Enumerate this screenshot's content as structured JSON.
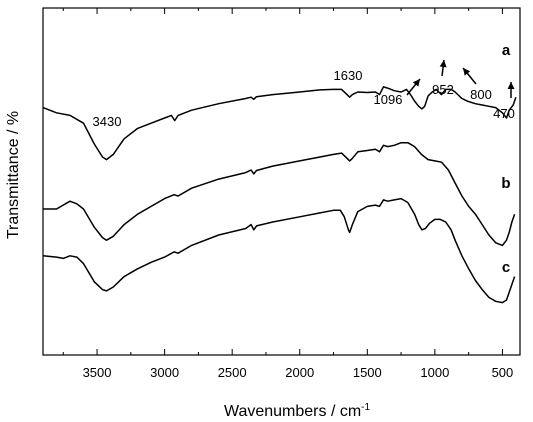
{
  "chart_data": {
    "type": "line",
    "xlabel": "Wavenumbers / cm",
    "xlabel_sup": "-1",
    "ylabel": "Transmittance / %",
    "xlim": [
      3900,
      370
    ],
    "x_reversed": true,
    "x_ticks": [
      3500,
      3000,
      2500,
      2000,
      1500,
      1000,
      500
    ],
    "x_tick_labels": [
      "3500",
      "3000",
      "2500",
      "2000",
      "1500",
      "1000",
      "500"
    ],
    "y_ticks_visible": false,
    "grid": false,
    "series": [
      {
        "name": "a",
        "points": [
          [
            3900,
            0.74
          ],
          [
            3800,
            0.72
          ],
          [
            3700,
            0.71
          ],
          [
            3600,
            0.68
          ],
          [
            3520,
            0.6
          ],
          [
            3460,
            0.55
          ],
          [
            3430,
            0.54
          ],
          [
            3380,
            0.56
          ],
          [
            3300,
            0.62
          ],
          [
            3200,
            0.66
          ],
          [
            3100,
            0.68
          ],
          [
            3000,
            0.7
          ],
          [
            2950,
            0.71
          ],
          [
            2925,
            0.69
          ],
          [
            2900,
            0.71
          ],
          [
            2800,
            0.73
          ],
          [
            2600,
            0.755
          ],
          [
            2400,
            0.775
          ],
          [
            2360,
            0.78
          ],
          [
            2340,
            0.772
          ],
          [
            2320,
            0.782
          ],
          [
            2200,
            0.79
          ],
          [
            2000,
            0.8
          ],
          [
            1850,
            0.808
          ],
          [
            1750,
            0.81
          ],
          [
            1690,
            0.81
          ],
          [
            1650,
            0.79
          ],
          [
            1630,
            0.78
          ],
          [
            1610,
            0.79
          ],
          [
            1570,
            0.8
          ],
          [
            1500,
            0.798
          ],
          [
            1440,
            0.8
          ],
          [
            1410,
            0.79
          ],
          [
            1380,
            0.82
          ],
          [
            1350,
            0.815
          ],
          [
            1300,
            0.805
          ],
          [
            1250,
            0.8
          ],
          [
            1210,
            0.81
          ],
          [
            1180,
            0.79
          ],
          [
            1150,
            0.765
          ],
          [
            1120,
            0.745
          ],
          [
            1096,
            0.735
          ],
          [
            1075,
            0.745
          ],
          [
            1050,
            0.785
          ],
          [
            1020,
            0.8
          ],
          [
            990,
            0.81
          ],
          [
            952,
            0.79
          ],
          [
            920,
            0.81
          ],
          [
            880,
            0.81
          ],
          [
            850,
            0.8
          ],
          [
            800,
            0.775
          ],
          [
            760,
            0.765
          ],
          [
            700,
            0.755
          ],
          [
            650,
            0.75
          ],
          [
            600,
            0.745
          ],
          [
            550,
            0.74
          ],
          [
            500,
            0.72
          ],
          [
            470,
            0.7
          ],
          [
            450,
            0.73
          ],
          [
            420,
            0.75
          ],
          [
            400,
            0.78
          ]
        ]
      },
      {
        "name": "b",
        "points": [
          [
            3900,
            0.35
          ],
          [
            3800,
            0.35
          ],
          [
            3700,
            0.38
          ],
          [
            3650,
            0.37
          ],
          [
            3600,
            0.35
          ],
          [
            3520,
            0.28
          ],
          [
            3460,
            0.24
          ],
          [
            3430,
            0.23
          ],
          [
            3380,
            0.245
          ],
          [
            3300,
            0.29
          ],
          [
            3200,
            0.33
          ],
          [
            3100,
            0.36
          ],
          [
            3000,
            0.39
          ],
          [
            2930,
            0.405
          ],
          [
            2900,
            0.4
          ],
          [
            2800,
            0.43
          ],
          [
            2600,
            0.465
          ],
          [
            2400,
            0.49
          ],
          [
            2360,
            0.5
          ],
          [
            2340,
            0.485
          ],
          [
            2320,
            0.498
          ],
          [
            2200,
            0.515
          ],
          [
            2000,
            0.535
          ],
          [
            1850,
            0.55
          ],
          [
            1750,
            0.56
          ],
          [
            1690,
            0.565
          ],
          [
            1650,
            0.545
          ],
          [
            1630,
            0.535
          ],
          [
            1610,
            0.545
          ],
          [
            1570,
            0.57
          ],
          [
            1500,
            0.575
          ],
          [
            1440,
            0.58
          ],
          [
            1410,
            0.57
          ],
          [
            1380,
            0.595
          ],
          [
            1350,
            0.59
          ],
          [
            1300,
            0.595
          ],
          [
            1250,
            0.605
          ],
          [
            1200,
            0.605
          ],
          [
            1150,
            0.59
          ],
          [
            1100,
            0.56
          ],
          [
            1050,
            0.54
          ],
          [
            1000,
            0.535
          ],
          [
            950,
            0.53
          ],
          [
            900,
            0.5
          ],
          [
            850,
            0.45
          ],
          [
            800,
            0.4
          ],
          [
            750,
            0.36
          ],
          [
            700,
            0.33
          ],
          [
            650,
            0.29
          ],
          [
            600,
            0.25
          ],
          [
            550,
            0.22
          ],
          [
            500,
            0.21
          ],
          [
            470,
            0.23
          ],
          [
            450,
            0.26
          ],
          [
            430,
            0.3
          ],
          [
            410,
            0.33
          ]
        ]
      },
      {
        "name": "c",
        "points": [
          [
            3900,
            0.17
          ],
          [
            3800,
            0.165
          ],
          [
            3750,
            0.16
          ],
          [
            3700,
            0.17
          ],
          [
            3650,
            0.165
          ],
          [
            3600,
            0.14
          ],
          [
            3520,
            0.07
          ],
          [
            3460,
            0.04
          ],
          [
            3430,
            0.035
          ],
          [
            3380,
            0.05
          ],
          [
            3300,
            0.09
          ],
          [
            3200,
            0.12
          ],
          [
            3100,
            0.145
          ],
          [
            3000,
            0.165
          ],
          [
            2930,
            0.185
          ],
          [
            2900,
            0.18
          ],
          [
            2800,
            0.21
          ],
          [
            2600,
            0.25
          ],
          [
            2400,
            0.275
          ],
          [
            2360,
            0.29
          ],
          [
            2340,
            0.27
          ],
          [
            2320,
            0.285
          ],
          [
            2200,
            0.3
          ],
          [
            2000,
            0.32
          ],
          [
            1850,
            0.335
          ],
          [
            1750,
            0.345
          ],
          [
            1700,
            0.345
          ],
          [
            1670,
            0.32
          ],
          [
            1640,
            0.27
          ],
          [
            1630,
            0.26
          ],
          [
            1610,
            0.29
          ],
          [
            1570,
            0.34
          ],
          [
            1500,
            0.36
          ],
          [
            1440,
            0.365
          ],
          [
            1410,
            0.36
          ],
          [
            1380,
            0.385
          ],
          [
            1350,
            0.38
          ],
          [
            1300,
            0.385
          ],
          [
            1250,
            0.39
          ],
          [
            1200,
            0.375
          ],
          [
            1150,
            0.33
          ],
          [
            1120,
            0.29
          ],
          [
            1096,
            0.27
          ],
          [
            1070,
            0.275
          ],
          [
            1040,
            0.295
          ],
          [
            1000,
            0.31
          ],
          [
            960,
            0.31
          ],
          [
            920,
            0.3
          ],
          [
            880,
            0.27
          ],
          [
            850,
            0.23
          ],
          [
            800,
            0.17
          ],
          [
            750,
            0.12
          ],
          [
            700,
            0.075
          ],
          [
            650,
            0.04
          ],
          [
            600,
            0.01
          ],
          [
            550,
            -0.005
          ],
          [
            500,
            -0.01
          ],
          [
            470,
            0.0
          ],
          [
            450,
            0.03
          ],
          [
            430,
            0.06
          ],
          [
            410,
            0.09
          ]
        ]
      }
    ],
    "annotations": [
      {
        "text": "3430",
        "x": 3430
      },
      {
        "text": "1630",
        "x": 1630
      },
      {
        "text": "1096",
        "x": 1096,
        "arrow": true
      },
      {
        "text": "952",
        "x": 952,
        "arrow": true
      },
      {
        "text": "800",
        "x": 800,
        "arrow": true
      },
      {
        "text": "470",
        "x": 470,
        "arrow": true
      }
    ]
  }
}
